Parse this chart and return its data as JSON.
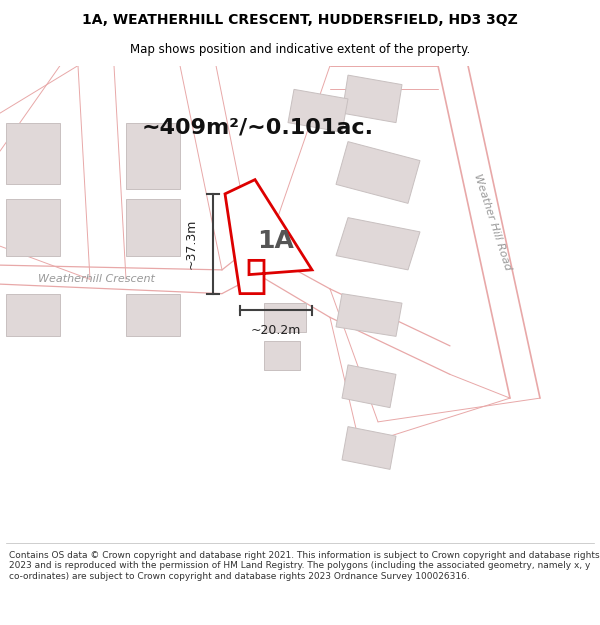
{
  "title": "1A, WEATHERHILL CRESCENT, HUDDERSFIELD, HD3 3QZ",
  "subtitle": "Map shows position and indicative extent of the property.",
  "area_text": "~409m²/~0.101ac.",
  "label_1a": "1A",
  "dim_width": "~20.2m",
  "dim_height": "~37.3m",
  "footer": "Contains OS data © Crown copyright and database right 2021. This information is subject to Crown copyright and database rights 2023 and is reproduced with the permission of HM Land Registry. The polygons (including the associated geometry, namely x, y co-ordinates) are subject to Crown copyright and database rights 2023 Ordnance Survey 100026316.",
  "map_bg": "#f7f2f2",
  "road_color": "#e8a8a8",
  "property_color": "#dd0000",
  "property_fill": "#ffffff",
  "building_fill": "#e0d8d8",
  "building_edge": "#c8c0c0",
  "dim_line_color": "#404040",
  "street_label_weatherhill": "Weatherhill Crescent",
  "street_label_weather_hill_road": "Weather Hill Road",
  "title_color": "#000000",
  "footer_color": "#333333",
  "title_fontsize": 10,
  "subtitle_fontsize": 8.5,
  "area_fontsize": 16,
  "label_fontsize": 18,
  "footer_fontsize": 6.5,
  "street_fontsize": 8
}
